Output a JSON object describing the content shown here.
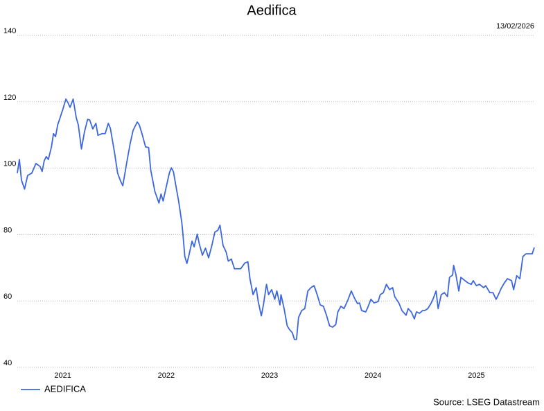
{
  "chart_data": {
    "type": "line",
    "title": "Aedifica",
    "date_label": "13/02/2026",
    "source": "Source: LSEG Datastream",
    "xlim": [
      2021.06,
      2026.06
    ],
    "xticks": [
      {
        "value": 2021.5,
        "label": "2021"
      },
      {
        "value": 2022.5,
        "label": "2022"
      },
      {
        "value": 2023.5,
        "label": "2023"
      },
      {
        "value": 2024.5,
        "label": "2024"
      },
      {
        "value": 2025.5,
        "label": "2025"
      }
    ],
    "ylim": [
      40,
      140
    ],
    "yticks": [
      40,
      60,
      80,
      100,
      120,
      140
    ],
    "grid": true,
    "legend": "bottom-left",
    "x": [
      2021.06,
      2021.08,
      2021.1,
      2021.13,
      2021.16,
      2021.2,
      2021.24,
      2021.28,
      2021.3,
      2021.32,
      2021.34,
      2021.36,
      2021.39,
      2021.41,
      2021.43,
      2021.45,
      2021.48,
      2021.5,
      2021.53,
      2021.55,
      2021.57,
      2021.6,
      2021.63,
      2021.65,
      2021.68,
      2021.71,
      2021.74,
      2021.76,
      2021.79,
      2021.82,
      2021.84,
      2021.88,
      2021.91,
      2021.94,
      2021.96,
      2022.0,
      2022.03,
      2022.06,
      2022.08,
      2022.12,
      2022.15,
      2022.18,
      2022.22,
      2022.24,
      2022.27,
      2022.3,
      2022.33,
      2022.35,
      2022.39,
      2022.43,
      2022.45,
      2022.47,
      2022.5,
      2022.53,
      2022.55,
      2022.57,
      2022.59,
      2022.62,
      2022.65,
      2022.66,
      2022.68,
      2022.7,
      2022.72,
      2022.75,
      2022.77,
      2022.8,
      2022.82,
      2022.85,
      2022.88,
      2022.91,
      2022.94,
      2022.97,
      2023.0,
      2023.02,
      2023.05,
      2023.08,
      2023.1,
      2023.13,
      2023.16,
      2023.19,
      2023.22,
      2023.26,
      2023.29,
      2023.31,
      2023.34,
      2023.37,
      2023.39,
      2023.42,
      2023.44,
      2023.47,
      2023.49,
      2023.52,
      2023.55,
      2023.57,
      2023.6,
      2023.61,
      2023.64,
      2023.67,
      2023.69,
      2023.72,
      2023.74,
      2023.76,
      2023.78,
      2023.81,
      2023.84,
      2023.87,
      2023.9,
      2023.93,
      2023.96,
      2023.99,
      2024.02,
      2024.05,
      2024.08,
      2024.11,
      2024.14,
      2024.16,
      2024.19,
      2024.22,
      2024.26,
      2024.29,
      2024.32,
      2024.35,
      2024.37,
      2024.39,
      2024.43,
      2024.45,
      2024.48,
      2024.51,
      2024.55,
      2024.57,
      2024.6,
      2024.63,
      2024.66,
      2024.69,
      2024.71,
      2024.75,
      2024.78,
      2024.82,
      2024.84,
      2024.87,
      2024.9,
      2024.92,
      2024.95,
      2024.98,
      2025.0,
      2025.03,
      2025.06,
      2025.08,
      2025.11,
      2025.13,
      2025.16,
      2025.19,
      2025.22,
      2025.24,
      2025.27,
      2025.28,
      2025.3,
      2025.33,
      2025.35,
      2025.39,
      2025.42,
      2025.45,
      2025.47,
      2025.5,
      2025.53,
      2025.57,
      2025.59,
      2025.63,
      2025.66,
      2025.69,
      2025.71,
      2025.74,
      2025.77,
      2025.8,
      2025.84,
      2025.86,
      2025.89,
      2025.92,
      2025.95,
      2025.98,
      2026.01,
      2026.04,
      2026.06
    ],
    "series": [
      {
        "name": "AEDIFICA",
        "color": "#3b66e0",
        "values": [
          98.5,
          102.6,
          96.4,
          93.7,
          97.8,
          98.5,
          101.4,
          100.5,
          99,
          102.2,
          103.5,
          102.6,
          106.4,
          110.4,
          109.5,
          113,
          115.8,
          117.7,
          120.8,
          119.7,
          118.3,
          120.8,
          115.2,
          113,
          105.8,
          111,
          114.7,
          114.5,
          111.8,
          113.5,
          109.9,
          110.4,
          110.4,
          113.5,
          112,
          104.7,
          98.5,
          96,
          94.7,
          102,
          107.2,
          111.4,
          113.9,
          113,
          109.9,
          106.4,
          106.2,
          99.5,
          93,
          89.5,
          92.2,
          90.1,
          94.3,
          98.5,
          100.1,
          98.9,
          95.3,
          90.1,
          83.8,
          80.7,
          73.4,
          71.3,
          73.8,
          78,
          76.3,
          80.1,
          77.2,
          73.8,
          75.9,
          73,
          76.5,
          80.7,
          81.3,
          82.8,
          76.7,
          74.7,
          72,
          72.6,
          69.7,
          69.7,
          69.7,
          71.4,
          71.8,
          66.7,
          61.9,
          64,
          59.8,
          55.5,
          58.8,
          65,
          61.9,
          63.4,
          60.5,
          63,
          58.8,
          61.9,
          57.7,
          52.5,
          51.5,
          50.4,
          48.4,
          48.4,
          55,
          57.1,
          57.7,
          63,
          64,
          64.6,
          61.9,
          58.8,
          58.4,
          55.7,
          52.5,
          52.1,
          52.9,
          56.7,
          58.4,
          57.7,
          60.5,
          63,
          60.9,
          59.2,
          59.4,
          57.1,
          56.7,
          58.1,
          60.5,
          59.4,
          59.8,
          61.9,
          62.5,
          65,
          63.4,
          64,
          61.3,
          59.4,
          57.1,
          55.7,
          57.7,
          56.7,
          54.6,
          56.7,
          56.3,
          57.1,
          57.1,
          57.7,
          59.2,
          60.5,
          63,
          57.7,
          61.9,
          62.5,
          61.3,
          67.1,
          67.8,
          70.7,
          68.2,
          63,
          67.1,
          66.1,
          65.4,
          65,
          66.1,
          64.6,
          65,
          64,
          64.6,
          62.5,
          62.5,
          60.5,
          61.7,
          63.8,
          65.4,
          66.7,
          66.1,
          63.4,
          67.6,
          66.7,
          73.4,
          74.2,
          74.2,
          74.2,
          76.1
        ]
      }
    ]
  }
}
